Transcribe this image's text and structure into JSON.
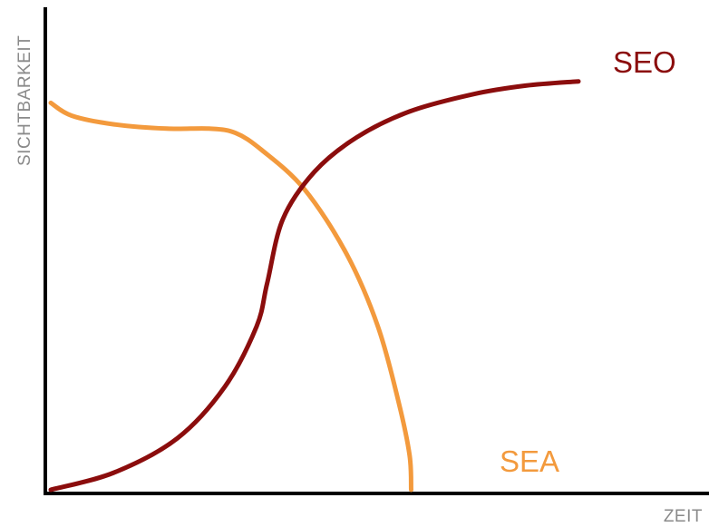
{
  "chart_data": {
    "type": "line",
    "title": "",
    "xlabel": "ZEIT",
    "ylabel": "SICHTBARKEIT",
    "xlim": [
      0,
      100
    ],
    "ylim": [
      0,
      100
    ],
    "grid": false,
    "legend": "inline labels next to each curve",
    "series": [
      {
        "name": "SEO",
        "color": "#8b0d0d",
        "x": [
          0,
          12,
          24,
          33,
          39,
          41,
          44,
          50,
          58,
          68,
          80,
          90,
          100
        ],
        "y": [
          0,
          4,
          12,
          24,
          38,
          48,
          63,
          74,
          82,
          88,
          92,
          94,
          95
        ]
      },
      {
        "name": "SEA",
        "color": "#f39a3d",
        "x": [
          0,
          4,
          12,
          22,
          30,
          35,
          40,
          48,
          56,
          62,
          66,
          68,
          68.3
        ],
        "y": [
          90,
          87,
          85,
          84,
          84,
          83,
          79,
          70,
          55,
          38,
          20,
          8,
          0
        ]
      }
    ]
  }
}
